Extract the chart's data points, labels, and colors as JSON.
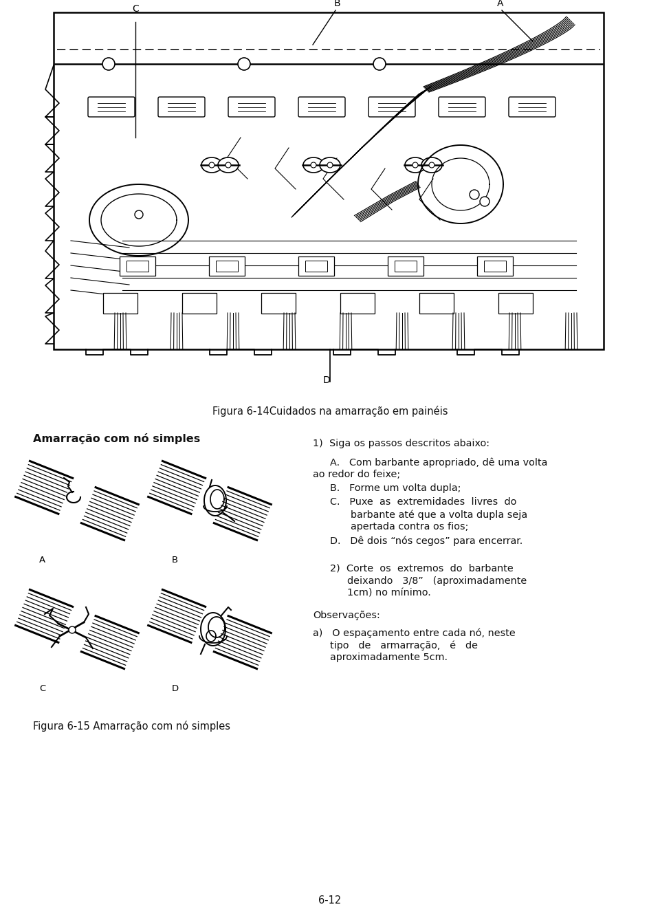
{
  "bg_color": "#ffffff",
  "text_color": "#111111",
  "fig14_caption": "Figura 6-14Cuidados na amarração em painéis",
  "fig15_caption": "Figura 6-15 Amarração com nó simples",
  "section_title": "Amarração com nó simples",
  "page_number": "6-12",
  "diag_label_A": "A",
  "diag_label_B": "B",
  "diag_label_C": "C",
  "diag_label_D": "D",
  "panel_label_A": "A",
  "panel_label_B": "B",
  "panel_label_C": "C",
  "panel_label_D": "D",
  "right_text": [
    [
      "normal",
      455,
      638,
      "1)  Siga os passos descritos abaixo:"
    ],
    [
      "normal",
      480,
      665,
      "A.   Com barbante apropriado, dê uma volta"
    ],
    [
      "normal",
      455,
      683,
      "ao redor do feixe;"
    ],
    [
      "normal",
      480,
      703,
      "B.   Forme um volta dupla;"
    ],
    [
      "normal",
      480,
      723,
      "C.   Puxe  as  extremidades  livres  do"
    ],
    [
      "normal",
      510,
      741,
      "barbante até que a volta dupla seja"
    ],
    [
      "normal",
      510,
      759,
      "apertada contra os fios;"
    ],
    [
      "normal",
      480,
      779,
      "D.   Dê dois “nós cegos” para encerrar."
    ],
    [
      "normal",
      480,
      820,
      "2)  Corte  os  extremos  do  barbante"
    ],
    [
      "normal",
      505,
      838,
      "deixando   3/8”   (aproximadamente"
    ],
    [
      "normal",
      505,
      856,
      "1cm) no mínimo."
    ],
    [
      "normal",
      455,
      888,
      "Observações:"
    ],
    [
      "normal",
      455,
      913,
      "a)   O espaçamento entre cada nó, neste"
    ],
    [
      "normal",
      480,
      931,
      "tipo   de   armarração,   é   de"
    ],
    [
      "normal",
      480,
      949,
      "aproximadamente 5cm."
    ]
  ]
}
